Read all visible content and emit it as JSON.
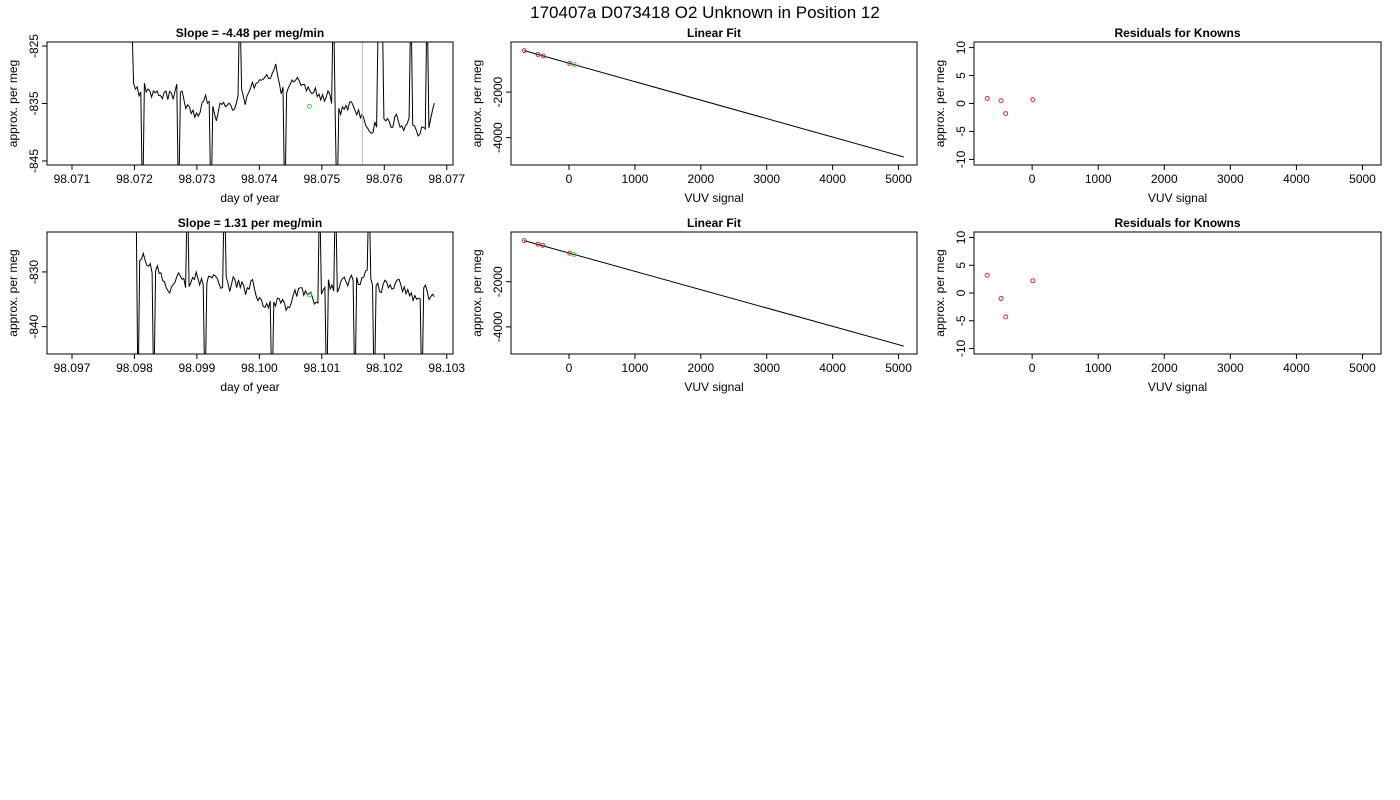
{
  "page_title": "170407a      D073418   O2 Unknown in Position  12",
  "colors": {
    "axis": "#000000",
    "series": "#000000",
    "known_points": "#cc3333",
    "unknown_point": "#33dd33",
    "outlier_line": "#bbbbbb"
  },
  "chart_data": [
    {
      "type": "line",
      "title": "Slope =  -4.48  per meg/min",
      "xlabel": "day of year",
      "ylabel": "approx. per meg",
      "xlim": [
        98.0706,
        98.0771
      ],
      "ylim": [
        -845.7,
        -824.3
      ],
      "x_ticks": [
        "98.071",
        "98.072",
        "98.073",
        "98.074",
        "98.075",
        "98.076",
        "98.077"
      ],
      "y_ticks": [
        "-825",
        "-835",
        "-845"
      ],
      "series": [
        {
          "x_start": 98.0719,
          "x_end": 98.0768
        }
      ],
      "unknown_point": {
        "x": 98.0748,
        "y": -835.5
      },
      "outlier_line_x": 98.07565
    },
    {
      "type": "line",
      "title": "Linear Fit",
      "xlabel": "VUV signal",
      "ylabel": "approx. per meg",
      "xlim": [
        -880,
        5280
      ],
      "ylim": [
        -5200,
        200
      ],
      "x_ticks": [
        "0",
        "1000",
        "2000",
        "3000",
        "4000",
        "5000"
      ],
      "y_ticks": [
        "-2000",
        "-4000"
      ],
      "fit_line": {
        "x": [
          -680,
          5080
        ],
        "y": [
          -180,
          -4850
        ]
      },
      "known_points": {
        "x": [
          -680,
          -470,
          -390,
          10
        ],
        "y": [
          -180,
          -350,
          -415,
          -740
        ]
      },
      "unknown_point": {
        "x": 80,
        "y": -795
      }
    },
    {
      "type": "scatter",
      "title": "Residuals for Knowns",
      "xlabel": "VUV signal",
      "ylabel": "approx. per meg",
      "xlim": [
        -880,
        5280
      ],
      "ylim": [
        -11,
        11
      ],
      "x_ticks": [
        "0",
        "1000",
        "2000",
        "3000",
        "4000",
        "5000"
      ],
      "y_ticks": [
        "10",
        "5",
        "0",
        "-5",
        "-10"
      ],
      "points": {
        "x": [
          -680,
          -470,
          -400,
          10
        ],
        "y": [
          0.9,
          0.5,
          -1.8,
          0.7
        ]
      }
    },
    {
      "type": "line",
      "title": "Slope =  1.31  per meg/min",
      "xlabel": "day of year",
      "ylabel": "approx. per meg",
      "xlim": [
        98.0966,
        98.1031
      ],
      "ylim": [
        -845,
        -822.7
      ],
      "x_ticks": [
        "98.097",
        "98.098",
        "98.099",
        "98.100",
        "98.101",
        "98.102",
        "98.103"
      ],
      "y_ticks": [
        "-830",
        "-840"
      ],
      "series": [
        {
          "x_start": 98.098,
          "x_end": 98.1028
        }
      ],
      "unknown_point": {
        "x": 98.1008,
        "y": -834.2
      }
    },
    {
      "type": "line",
      "title": "Linear Fit",
      "xlabel": "VUV signal",
      "ylabel": "approx. per meg",
      "xlim": [
        -880,
        5280
      ],
      "ylim": [
        -5200,
        200
      ],
      "x_ticks": [
        "0",
        "1000",
        "2000",
        "3000",
        "4000",
        "5000"
      ],
      "y_ticks": [
        "-2000",
        "-4000"
      ],
      "fit_line": {
        "x": [
          -680,
          5080
        ],
        "y": [
          -180,
          -4850
        ]
      },
      "known_points": {
        "x": [
          -680,
          -470,
          -400,
          10
        ],
        "y": [
          -180,
          -340,
          -390,
          -740
        ]
      },
      "unknown_point": {
        "x": 80,
        "y": -795
      }
    },
    {
      "type": "scatter",
      "title": "Residuals for Knowns",
      "xlabel": "VUV signal",
      "ylabel": "approx. per meg",
      "xlim": [
        -880,
        5280
      ],
      "ylim": [
        -11,
        11
      ],
      "x_ticks": [
        "0",
        "1000",
        "2000",
        "3000",
        "4000",
        "5000"
      ],
      "y_ticks": [
        "10",
        "5",
        "0",
        "-5",
        "-10"
      ],
      "points": {
        "x": [
          -680,
          -470,
          -400,
          10
        ],
        "y": [
          3.2,
          -1.0,
          -4.3,
          2.2
        ]
      }
    }
  ]
}
